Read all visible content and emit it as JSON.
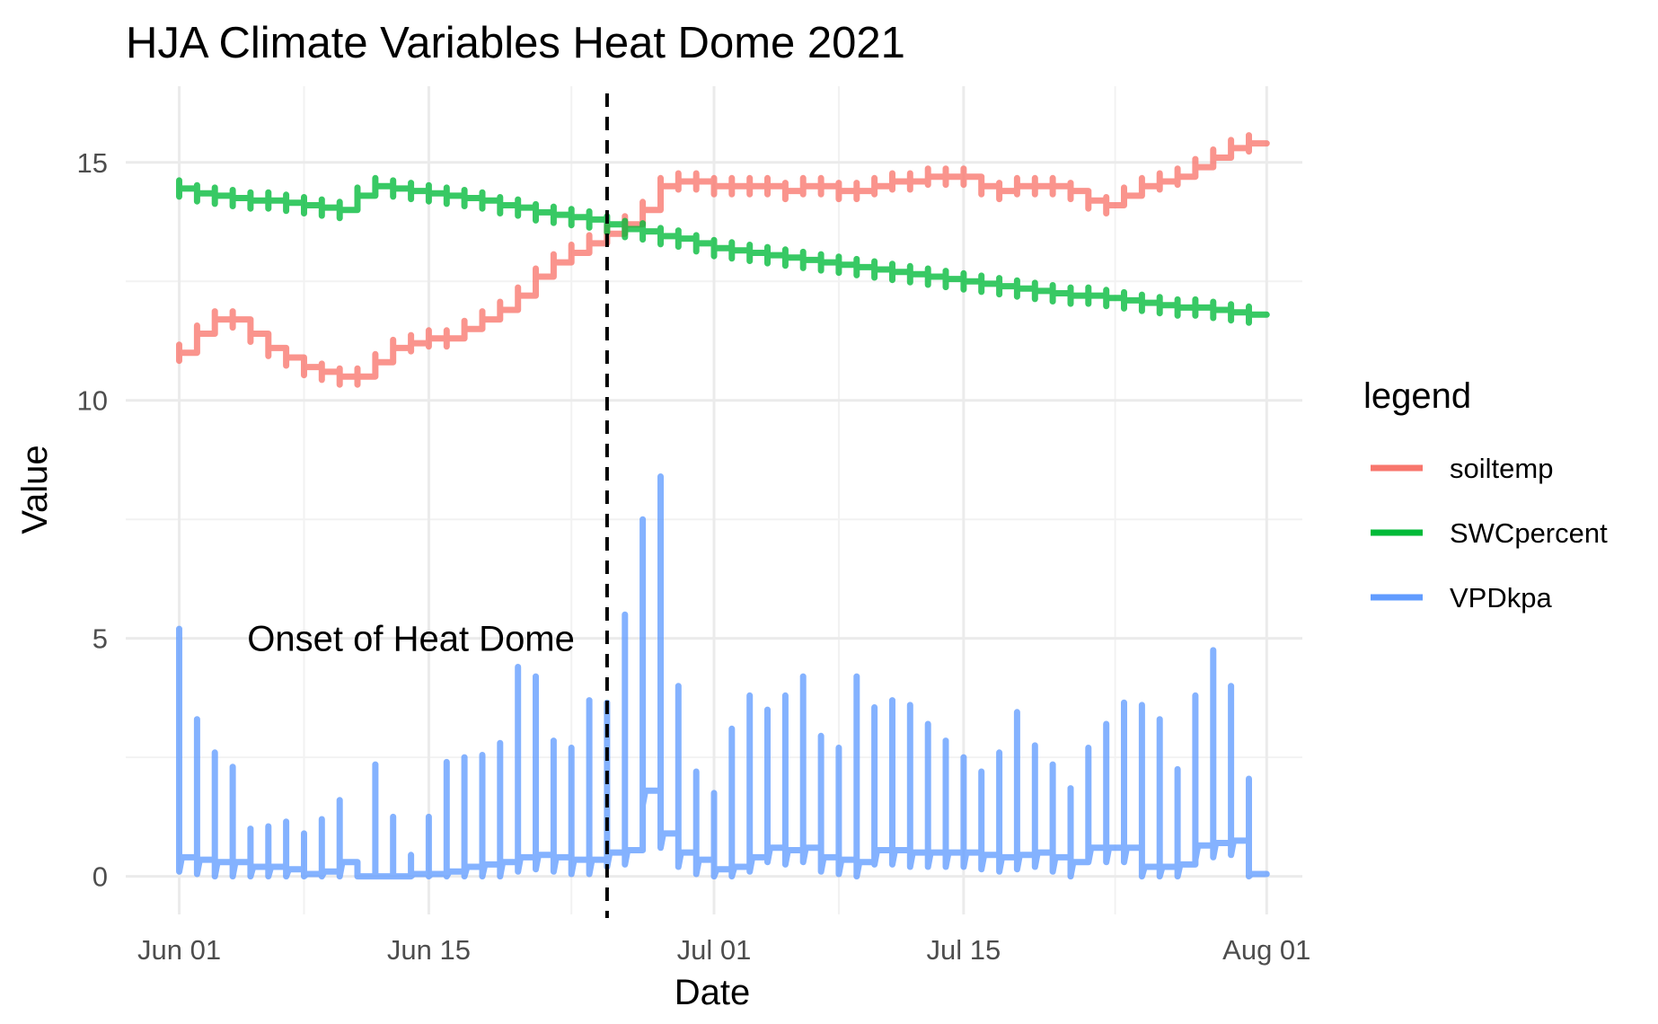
{
  "chart_data": {
    "type": "line",
    "title": "HJA Climate Variables Heat Dome 2021",
    "xlabel": "Date",
    "ylabel": "Value",
    "x_ticks": [
      "Jun 01",
      "Jun 15",
      "Jul 01",
      "Jul 15",
      "Aug 01"
    ],
    "x_tick_dates": [
      "2021-06-01",
      "2021-06-15",
      "2021-07-01",
      "2021-07-15",
      "2021-08-01"
    ],
    "xlim": [
      "2021-05-29",
      "2021-08-03"
    ],
    "y_ticks": [
      "0",
      "5",
      "10",
      "15"
    ],
    "ylim": [
      -0.8,
      16.6
    ],
    "grid": true,
    "legend": {
      "title": "legend",
      "position": "right",
      "entries": [
        "soiltemp",
        "SWCpercent",
        "VPDkpa"
      ]
    },
    "annotations": {
      "vline": {
        "date": "2021-06-25",
        "style": "dashed",
        "color": "#000000"
      },
      "text": {
        "label": "Onset of Heat Dome",
        "date": "2021-06-14",
        "y": 5.0
      }
    },
    "series": [
      {
        "name": "soiltemp",
        "color": "#F8766D",
        "x": [
          "2021-06-01",
          "2021-06-02",
          "2021-06-03",
          "2021-06-04",
          "2021-06-05",
          "2021-06-06",
          "2021-06-07",
          "2021-06-08",
          "2021-06-09",
          "2021-06-10",
          "2021-06-11",
          "2021-06-12",
          "2021-06-13",
          "2021-06-14",
          "2021-06-15",
          "2021-06-16",
          "2021-06-17",
          "2021-06-18",
          "2021-06-19",
          "2021-06-20",
          "2021-06-21",
          "2021-06-22",
          "2021-06-23",
          "2021-06-24",
          "2021-06-25",
          "2021-06-26",
          "2021-06-27",
          "2021-06-28",
          "2021-06-29",
          "2021-06-30",
          "2021-07-01",
          "2021-07-02",
          "2021-07-03",
          "2021-07-04",
          "2021-07-05",
          "2021-07-06",
          "2021-07-07",
          "2021-07-08",
          "2021-07-09",
          "2021-07-10",
          "2021-07-11",
          "2021-07-12",
          "2021-07-13",
          "2021-07-14",
          "2021-07-15",
          "2021-07-16",
          "2021-07-17",
          "2021-07-18",
          "2021-07-19",
          "2021-07-20",
          "2021-07-21",
          "2021-07-22",
          "2021-07-23",
          "2021-07-24",
          "2021-07-25",
          "2021-07-26",
          "2021-07-27",
          "2021-07-28",
          "2021-07-29",
          "2021-07-30",
          "2021-07-31"
        ],
        "values": [
          11.0,
          11.4,
          11.7,
          11.7,
          11.4,
          11.1,
          10.9,
          10.7,
          10.6,
          10.5,
          10.5,
          10.8,
          11.1,
          11.2,
          11.3,
          11.3,
          11.5,
          11.7,
          11.9,
          12.2,
          12.6,
          12.9,
          13.1,
          13.3,
          13.5,
          13.7,
          14.0,
          14.5,
          14.6,
          14.6,
          14.5,
          14.5,
          14.5,
          14.5,
          14.4,
          14.5,
          14.5,
          14.4,
          14.4,
          14.5,
          14.6,
          14.6,
          14.7,
          14.7,
          14.7,
          14.5,
          14.4,
          14.5,
          14.5,
          14.5,
          14.4,
          14.2,
          14.1,
          14.3,
          14.5,
          14.6,
          14.7,
          14.9,
          15.1,
          15.3,
          15.4
        ]
      },
      {
        "name": "SWCpercent",
        "color": "#00BA38",
        "x": [
          "2021-06-01",
          "2021-06-02",
          "2021-06-03",
          "2021-06-04",
          "2021-06-05",
          "2021-06-06",
          "2021-06-07",
          "2021-06-08",
          "2021-06-09",
          "2021-06-10",
          "2021-06-11",
          "2021-06-12",
          "2021-06-13",
          "2021-06-14",
          "2021-06-15",
          "2021-06-16",
          "2021-06-17",
          "2021-06-18",
          "2021-06-19",
          "2021-06-20",
          "2021-06-21",
          "2021-06-22",
          "2021-06-23",
          "2021-06-24",
          "2021-06-25",
          "2021-06-26",
          "2021-06-27",
          "2021-06-28",
          "2021-06-29",
          "2021-06-30",
          "2021-07-01",
          "2021-07-02",
          "2021-07-03",
          "2021-07-04",
          "2021-07-05",
          "2021-07-06",
          "2021-07-07",
          "2021-07-08",
          "2021-07-09",
          "2021-07-10",
          "2021-07-11",
          "2021-07-12",
          "2021-07-13",
          "2021-07-14",
          "2021-07-15",
          "2021-07-16",
          "2021-07-17",
          "2021-07-18",
          "2021-07-19",
          "2021-07-20",
          "2021-07-21",
          "2021-07-22",
          "2021-07-23",
          "2021-07-24",
          "2021-07-25",
          "2021-07-26",
          "2021-07-27",
          "2021-07-28",
          "2021-07-29",
          "2021-07-30",
          "2021-07-31"
        ],
        "values": [
          14.45,
          14.35,
          14.3,
          14.25,
          14.2,
          14.2,
          14.15,
          14.1,
          14.05,
          14.0,
          14.3,
          14.5,
          14.45,
          14.4,
          14.35,
          14.3,
          14.25,
          14.2,
          14.1,
          14.05,
          13.95,
          13.9,
          13.85,
          13.8,
          13.7,
          13.6,
          13.55,
          13.45,
          13.4,
          13.3,
          13.2,
          13.15,
          13.1,
          13.05,
          13.0,
          12.95,
          12.9,
          12.85,
          12.8,
          12.75,
          12.7,
          12.65,
          12.6,
          12.55,
          12.5,
          12.45,
          12.4,
          12.35,
          12.3,
          12.25,
          12.2,
          12.2,
          12.15,
          12.1,
          12.05,
          12.0,
          11.95,
          11.95,
          11.9,
          11.85,
          11.8
        ]
      },
      {
        "name": "VPDkpa",
        "color": "#619CFF",
        "x": [
          "2021-06-01",
          "2021-06-02",
          "2021-06-03",
          "2021-06-04",
          "2021-06-05",
          "2021-06-06",
          "2021-06-07",
          "2021-06-08",
          "2021-06-09",
          "2021-06-10",
          "2021-06-11",
          "2021-06-12",
          "2021-06-13",
          "2021-06-14",
          "2021-06-15",
          "2021-06-16",
          "2021-06-17",
          "2021-06-18",
          "2021-06-19",
          "2021-06-20",
          "2021-06-21",
          "2021-06-22",
          "2021-06-23",
          "2021-06-24",
          "2021-06-25",
          "2021-06-26",
          "2021-06-27",
          "2021-06-28",
          "2021-06-29",
          "2021-06-30",
          "2021-07-01",
          "2021-07-02",
          "2021-07-03",
          "2021-07-04",
          "2021-07-05",
          "2021-07-06",
          "2021-07-07",
          "2021-07-08",
          "2021-07-09",
          "2021-07-10",
          "2021-07-11",
          "2021-07-12",
          "2021-07-13",
          "2021-07-14",
          "2021-07-15",
          "2021-07-16",
          "2021-07-17",
          "2021-07-18",
          "2021-07-19",
          "2021-07-20",
          "2021-07-21",
          "2021-07-22",
          "2021-07-23",
          "2021-07-24",
          "2021-07-25",
          "2021-07-26",
          "2021-07-27",
          "2021-07-28",
          "2021-07-29",
          "2021-07-30",
          "2021-07-31"
        ],
        "daily_min": [
          0.4,
          0.35,
          0.3,
          0.3,
          0.2,
          0.2,
          0.15,
          0.05,
          0.1,
          0.3,
          0.0,
          0.0,
          0.0,
          0.05,
          0.05,
          0.1,
          0.2,
          0.25,
          0.3,
          0.4,
          0.45,
          0.4,
          0.35,
          0.35,
          0.5,
          0.55,
          1.8,
          0.9,
          0.5,
          0.35,
          0.15,
          0.2,
          0.4,
          0.6,
          0.55,
          0.6,
          0.4,
          0.35,
          0.3,
          0.55,
          0.55,
          0.5,
          0.5,
          0.5,
          0.5,
          0.45,
          0.4,
          0.45,
          0.5,
          0.4,
          0.3,
          0.6,
          0.6,
          0.6,
          0.2,
          0.2,
          0.25,
          0.65,
          0.7,
          0.75,
          0.05
        ],
        "daily_max": [
          5.2,
          3.3,
          2.6,
          2.3,
          1.0,
          1.05,
          1.15,
          0.9,
          1.2,
          1.6,
          0.3,
          2.35,
          1.25,
          0.45,
          1.25,
          2.4,
          2.5,
          2.55,
          2.8,
          4.4,
          4.2,
          2.85,
          2.7,
          3.7,
          3.65,
          5.5,
          7.5,
          8.4,
          4.0,
          2.2,
          1.75,
          3.1,
          3.8,
          3.5,
          3.8,
          4.2,
          2.95,
          2.7,
          4.2,
          3.55,
          3.7,
          3.6,
          3.2,
          2.85,
          2.5,
          2.2,
          2.6,
          3.45,
          2.75,
          2.35,
          1.85,
          2.7,
          3.2,
          3.65,
          3.6,
          3.3,
          2.25,
          3.8,
          4.75,
          4.0,
          2.05
        ]
      }
    ]
  }
}
